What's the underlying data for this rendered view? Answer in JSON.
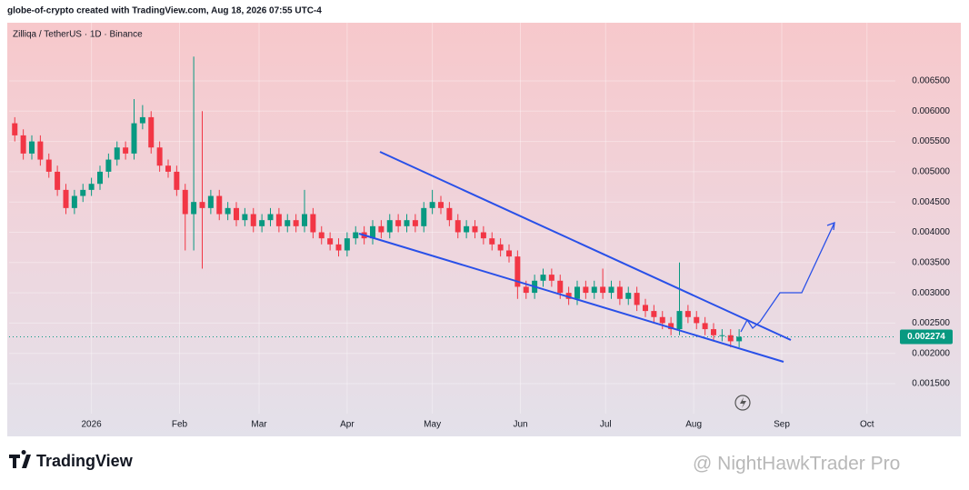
{
  "header": "globe-of-crypto created with TradingView.com, Aug 18, 2026 07:55 UTC-4",
  "brand": "TradingView",
  "watermark": "@ NightHawkTrader Pro",
  "chart_data": {
    "type": "candlestick",
    "title": "Zilliqa / TetherUS · 1D · Binance",
    "up_color": "#089981",
    "down_color": "#f23645",
    "grid": true,
    "x": [
      -27,
      -24,
      -21,
      -18,
      -15,
      -12,
      -9,
      -6,
      -3,
      0,
      3,
      6,
      9,
      12,
      15,
      18,
      21,
      24,
      27,
      30,
      33,
      36,
      39,
      42,
      45,
      48,
      51,
      54,
      57,
      60,
      63,
      66,
      69,
      72,
      75,
      78,
      81,
      84,
      87,
      90,
      93,
      96,
      99,
      102,
      105,
      108,
      111,
      114,
      117,
      120,
      123,
      126,
      129,
      132,
      135,
      138,
      141,
      144,
      147,
      150,
      153,
      156,
      159,
      162,
      165,
      168,
      171,
      174,
      177,
      180,
      183,
      186,
      189,
      192,
      195,
      198,
      201,
      204,
      207,
      210,
      213,
      216,
      219,
      222,
      225,
      228
    ],
    "open": [
      0.0058,
      0.0056,
      0.0053,
      0.0055,
      0.0052,
      0.005,
      0.0047,
      0.0044,
      0.0046,
      0.0047,
      0.0048,
      0.005,
      0.0052,
      0.0054,
      0.0053,
      0.0058,
      0.0059,
      0.0054,
      0.0051,
      0.005,
      0.0047,
      0.0043,
      0.0045,
      0.0044,
      0.0046,
      0.0043,
      0.0044,
      0.0042,
      0.0043,
      0.0041,
      0.0042,
      0.0043,
      0.0041,
      0.0042,
      0.0041,
      0.0043,
      0.004,
      0.0039,
      0.0038,
      0.0037,
      0.0039,
      0.004,
      0.0039,
      0.0041,
      0.004,
      0.0042,
      0.0041,
      0.0042,
      0.0041,
      0.0044,
      0.0045,
      0.0044,
      0.0042,
      0.004,
      0.0041,
      0.004,
      0.0039,
      0.0038,
      0.0037,
      0.0036,
      0.0031,
      0.003,
      0.0032,
      0.0033,
      0.0032,
      0.003,
      0.0029,
      0.0031,
      0.003,
      0.0031,
      0.003,
      0.0031,
      0.0029,
      0.003,
      0.0028,
      0.0027,
      0.0026,
      0.0025,
      0.0024,
      0.0027,
      0.0026,
      0.0025,
      0.0024,
      0.0023,
      0.0023,
      0.0022
    ],
    "high": [
      0.0059,
      0.0057,
      0.0056,
      0.0056,
      0.0053,
      0.0051,
      0.0048,
      0.0047,
      0.0048,
      0.0049,
      0.0051,
      0.0053,
      0.0055,
      0.0055,
      0.0062,
      0.0061,
      0.006,
      0.0055,
      0.0052,
      0.0051,
      0.0048,
      0.0069,
      0.006,
      0.0047,
      0.0047,
      0.0045,
      0.0045,
      0.0044,
      0.0044,
      0.0043,
      0.0044,
      0.0044,
      0.0043,
      0.0043,
      0.0047,
      0.0044,
      0.0041,
      0.004,
      0.0039,
      0.004,
      0.0041,
      0.0041,
      0.0042,
      0.0042,
      0.0043,
      0.0043,
      0.0043,
      0.0043,
      0.0045,
      0.0047,
      0.0046,
      0.0045,
      0.0043,
      0.0042,
      0.0042,
      0.0041,
      0.004,
      0.0039,
      0.0038,
      0.0037,
      0.0032,
      0.0033,
      0.0034,
      0.0034,
      0.0033,
      0.0031,
      0.0032,
      0.0032,
      0.0032,
      0.0034,
      0.0032,
      0.0032,
      0.0031,
      0.0031,
      0.0029,
      0.0028,
      0.0027,
      0.0026,
      0.0035,
      0.0028,
      0.0027,
      0.0026,
      0.0025,
      0.0024,
      0.0024,
      0.0024
    ],
    "low": [
      0.0055,
      0.0052,
      0.0052,
      0.0051,
      0.0049,
      0.0046,
      0.0043,
      0.0043,
      0.0045,
      0.0046,
      0.0047,
      0.0049,
      0.0051,
      0.0052,
      0.0052,
      0.0057,
      0.0053,
      0.005,
      0.0049,
      0.0046,
      0.0037,
      0.0037,
      0.0034,
      0.0043,
      0.0042,
      0.0042,
      0.0041,
      0.0041,
      0.004,
      0.004,
      0.0041,
      0.004,
      0.004,
      0.004,
      0.004,
      0.0039,
      0.0038,
      0.0037,
      0.0036,
      0.0036,
      0.0038,
      0.0038,
      0.0038,
      0.0039,
      0.0039,
      0.004,
      0.004,
      0.004,
      0.004,
      0.0043,
      0.0043,
      0.0041,
      0.0039,
      0.0039,
      0.0039,
      0.0038,
      0.0037,
      0.0036,
      0.0035,
      0.0029,
      0.0029,
      0.0029,
      0.0031,
      0.0031,
      0.0029,
      0.0028,
      0.0028,
      0.0029,
      0.0029,
      0.0029,
      0.0029,
      0.0028,
      0.0028,
      0.0027,
      0.0026,
      0.0025,
      0.0024,
      0.0023,
      0.0023,
      0.0025,
      0.0024,
      0.0023,
      0.0022,
      0.0022,
      0.0021,
      0.0021
    ],
    "close": [
      0.0056,
      0.0053,
      0.0055,
      0.0052,
      0.005,
      0.0047,
      0.0044,
      0.0046,
      0.0047,
      0.0048,
      0.005,
      0.0052,
      0.0054,
      0.0053,
      0.0058,
      0.0059,
      0.0054,
      0.0051,
      0.005,
      0.0047,
      0.0043,
      0.0045,
      0.0044,
      0.0046,
      0.0043,
      0.0044,
      0.0042,
      0.0043,
      0.0041,
      0.0042,
      0.0043,
      0.0041,
      0.0042,
      0.0041,
      0.0043,
      0.004,
      0.0039,
      0.0038,
      0.0037,
      0.0039,
      0.004,
      0.0039,
      0.0041,
      0.004,
      0.0042,
      0.0041,
      0.0042,
      0.0041,
      0.0044,
      0.0045,
      0.0044,
      0.0042,
      0.004,
      0.0041,
      0.004,
      0.0039,
      0.0038,
      0.0037,
      0.0036,
      0.0031,
      0.003,
      0.0032,
      0.0033,
      0.0032,
      0.003,
      0.0029,
      0.0031,
      0.003,
      0.0031,
      0.003,
      0.0031,
      0.0029,
      0.003,
      0.0028,
      0.0027,
      0.0026,
      0.0025,
      0.0024,
      0.0027,
      0.0026,
      0.0025,
      0.0024,
      0.0023,
      0.0023,
      0.0022,
      0.002274
    ],
    "xlim": [
      -29,
      283
    ],
    "xticks": [
      {
        "value": 0,
        "label": "2026"
      },
      {
        "value": 31,
        "label": "Feb"
      },
      {
        "value": 59,
        "label": "Mar"
      },
      {
        "value": 90,
        "label": "Apr"
      },
      {
        "value": 120,
        "label": "May"
      },
      {
        "value": 151,
        "label": "Jun"
      },
      {
        "value": 181,
        "label": "Jul"
      },
      {
        "value": 212,
        "label": "Aug"
      },
      {
        "value": 243,
        "label": "Sep"
      },
      {
        "value": 273,
        "label": "Oct"
      }
    ],
    "ylim": [
      0.00066,
      0.00746
    ],
    "yticks": [
      {
        "value": 0.0015,
        "label": "0.001500"
      },
      {
        "value": 0.002,
        "label": "0.002000"
      },
      {
        "value": 0.0025,
        "label": "0.002500"
      },
      {
        "value": 0.003,
        "label": "0.003000"
      },
      {
        "value": 0.0035,
        "label": "0.003500"
      },
      {
        "value": 0.004,
        "label": "0.004000"
      },
      {
        "value": 0.0045,
        "label": "0.004500"
      },
      {
        "value": 0.005,
        "label": "0.005000"
      },
      {
        "value": 0.0055,
        "label": "0.005500"
      },
      {
        "value": 0.006,
        "label": "0.006000"
      },
      {
        "value": 0.0065,
        "label": "0.006500"
      }
    ]
  }
}
